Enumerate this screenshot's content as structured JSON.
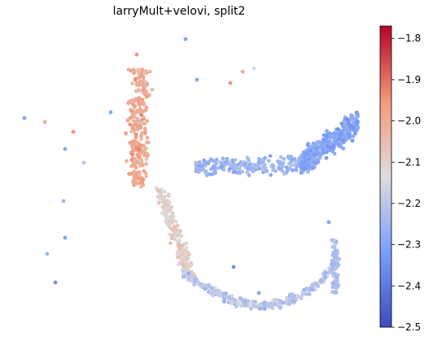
{
  "chart_data": {
    "type": "scatter",
    "title": "larryMult+velovi, split2",
    "colormap": "coolwarm",
    "color_range": [
      -2.5,
      -1.77
    ],
    "colorbar_ticks": [
      "−1.8",
      "−1.9",
      "−2.0",
      "−2.1",
      "−2.2",
      "−2.3",
      "−2.4",
      "−2.5"
    ],
    "colorbar_tick_values": [
      -1.8,
      -1.9,
      -2.0,
      -2.1,
      -2.2,
      -2.3,
      -2.4,
      -2.5
    ],
    "axes_visible": false,
    "grid": false,
    "regions": [
      {
        "name": "upper-left-arm",
        "x_range": [
          150,
          210
        ],
        "y_range": [
          85,
          230
        ],
        "value_mean": -2.0,
        "value_spread": 0.08
      },
      {
        "name": "left-stem",
        "x_range": [
          170,
          240
        ],
        "y_range": [
          230,
          340
        ],
        "value_mean": -2.1,
        "value_spread": 0.08
      },
      {
        "name": "bottom-curve",
        "x_range": [
          230,
          420
        ],
        "y_range": [
          330,
          385
        ],
        "value_mean": -2.2,
        "value_spread": 0.09
      },
      {
        "name": "middle-band",
        "x_range": [
          240,
          380
        ],
        "y_range": [
          180,
          240
        ],
        "value_mean": -2.25,
        "value_spread": 0.07
      },
      {
        "name": "right-cluster",
        "x_range": [
          370,
          440
        ],
        "y_range": [
          130,
          240
        ],
        "value_mean": -2.3,
        "value_spread": 0.07
      },
      {
        "name": "right-lower-arm",
        "x_range": [
          405,
          425
        ],
        "y_range": [
          290,
          360
        ],
        "value_mean": -2.25,
        "value_spread": 0.07
      }
    ]
  }
}
